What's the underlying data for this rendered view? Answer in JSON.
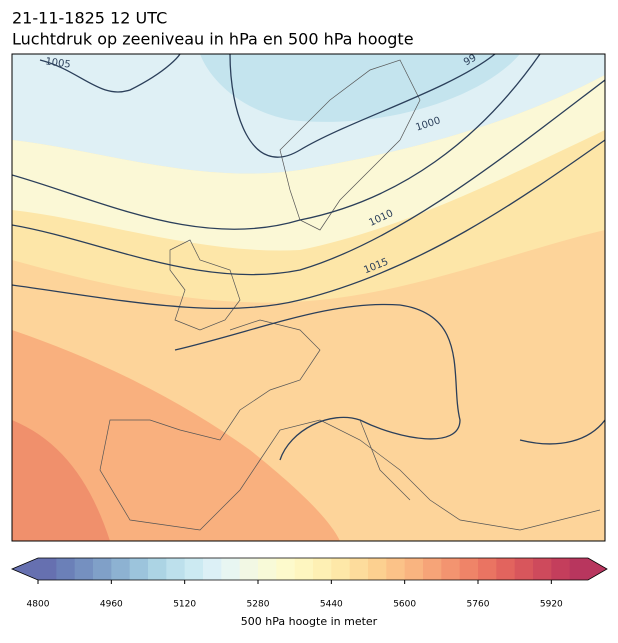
{
  "title": "21-11-1825 12 UTC",
  "subtitle": "Luchtdruk op zeeniveau in hPa en 500 hPa hoogte",
  "isobar_labels": [
    "1005",
    "1000",
    "1010",
    "1015",
    "99"
  ],
  "colorbar": {
    "label": "500 hPa hoogte in meter",
    "lim": [
      4800,
      6000
    ],
    "ticks": [
      4800,
      4960,
      5120,
      5280,
      5440,
      5600,
      5760,
      5920
    ],
    "colors": [
      "#6670b0",
      "#6b80b8",
      "#7590c0",
      "#80a0c8",
      "#8db2d2",
      "#9cc4dc",
      "#acd4e4",
      "#bde0ec",
      "#cceaf2",
      "#dcf0f6",
      "#e8f6f2",
      "#f2f8e4",
      "#f8fad8",
      "#fdfacc",
      "#fef6c0",
      "#fef0b4",
      "#fee8a8",
      "#fddc9c",
      "#fcd090",
      "#fbc288",
      "#f9b480",
      "#f6a478",
      "#f39470",
      "#ef8468",
      "#ea7462",
      "#e2645e",
      "#d8565c",
      "#ce4a5c",
      "#c43e5c",
      "#b8365e"
    ]
  }
}
